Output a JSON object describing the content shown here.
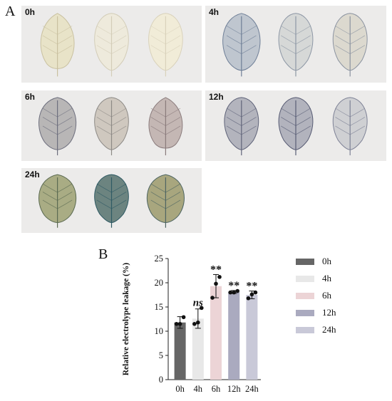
{
  "panels": {
    "a": "A",
    "b": "B"
  },
  "photos": [
    {
      "label": "0h",
      "leaves": [
        {
          "tint": "#e8e3c8",
          "vein": "#c9c1a0",
          "shape": "ovate"
        },
        {
          "tint": "#eeeadc",
          "vein": "#d3cdb8",
          "shape": "heart"
        },
        {
          "tint": "#f1ecd8",
          "vein": "#d9d2bb",
          "shape": "heart"
        }
      ]
    },
    {
      "label": "4h",
      "leaves": [
        {
          "tint": "#bfc6cf",
          "vein": "#6f7f97",
          "shape": "round"
        },
        {
          "tint": "#d6d8d7",
          "vein": "#8d97a5",
          "shape": "heart"
        },
        {
          "tint": "#dcd9cf",
          "vein": "#8b93a0",
          "shape": "heart"
        }
      ]
    },
    {
      "label": "6h",
      "leaves": [
        {
          "tint": "#b8b6b6",
          "vein": "#6e6f7e",
          "shape": "round"
        },
        {
          "tint": "#cfc8bf",
          "vein": "#8d8a86",
          "shape": "heart"
        },
        {
          "tint": "#c4b7b4",
          "vein": "#8a7b7c",
          "shape": "ovate"
        }
      ]
    },
    {
      "label": "12h",
      "leaves": [
        {
          "tint": "#b3b4bd",
          "vein": "#5f6379",
          "shape": "heart"
        },
        {
          "tint": "#b2b3bd",
          "vein": "#585c74",
          "shape": "heart"
        },
        {
          "tint": "#cfd0d3",
          "vein": "#7e8296",
          "shape": "heart"
        }
      ]
    },
    {
      "label": "24h",
      "leaves": [
        {
          "tint": "#a9ac84",
          "vein": "#5c6b52",
          "shape": "round"
        },
        {
          "tint": "#6c8480",
          "vein": "#2f5a64",
          "shape": "heart"
        },
        {
          "tint": "#a8a67e",
          "vein": "#4e6562",
          "shape": "round"
        }
      ]
    }
  ],
  "chart_data": {
    "type": "bar",
    "ylabel": "Relative electrolype leakage (%)",
    "ylim": [
      0,
      25
    ],
    "yticks": [
      0,
      5,
      10,
      15,
      20,
      25
    ],
    "categories": [
      "0h",
      "4h",
      "6h",
      "12h",
      "24h"
    ],
    "series": [
      {
        "values": [
          11.8,
          12.6,
          19.3,
          18.1,
          17.5
        ]
      }
    ],
    "errors": [
      1.2,
      2.0,
      2.4,
      0.3,
      0.8
    ],
    "points": [
      [
        11.5,
        11.5,
        12.9
      ],
      [
        11.5,
        11.8,
        14.8
      ],
      [
        16.9,
        19.8,
        21.2
      ],
      [
        18.0,
        18.0,
        18.3
      ],
      [
        16.8,
        17.6,
        18.0
      ]
    ],
    "annotations": [
      "",
      "ns",
      "**",
      "**",
      "**"
    ],
    "colors": [
      "#666666",
      "#e8e8e8",
      "#ecd4d6",
      "#aaaabf",
      "#c9c9d8"
    ],
    "legend": [
      "0h",
      "4h",
      "6h",
      "12h",
      "24h"
    ]
  }
}
